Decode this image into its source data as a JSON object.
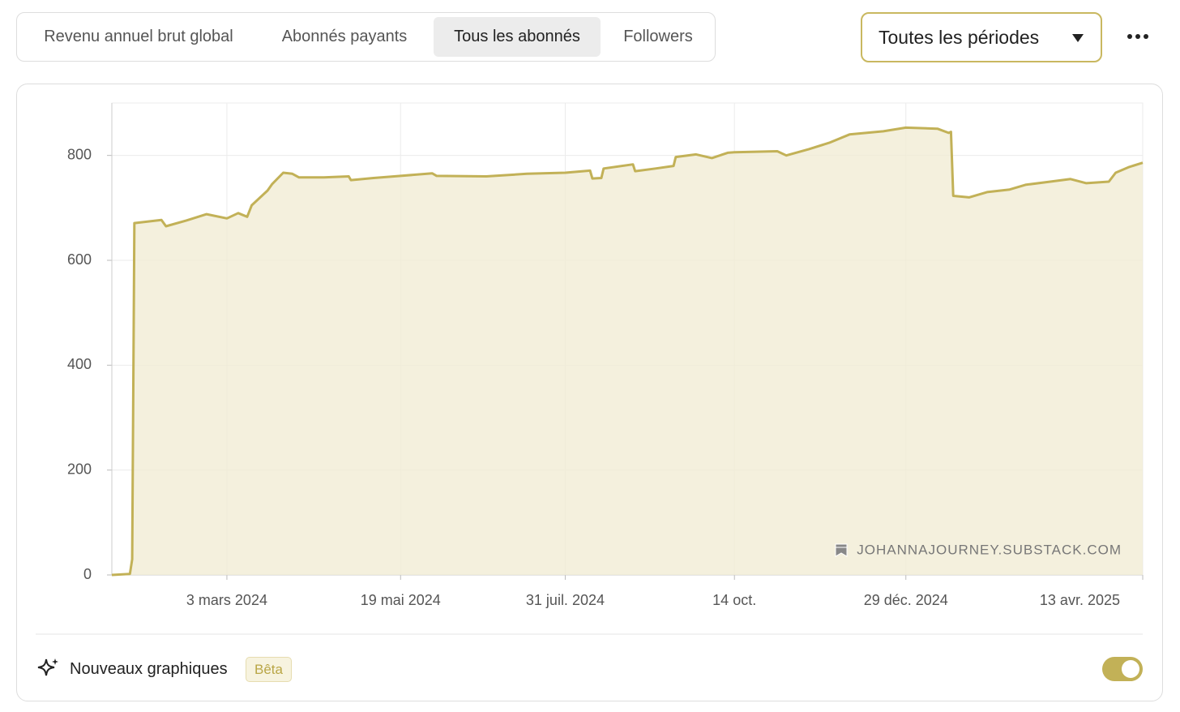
{
  "tabs": [
    "Revenu annuel brut global",
    "Abonnés payants",
    "Tous les abonnés",
    "Followers"
  ],
  "period_selector": "Toutes les périodes",
  "chart_data": {
    "type": "area",
    "watermark": "JOHANNAJOURNEY.SUBSTACK.COM",
    "color": "#c2b157",
    "fill": "#f1ecd5",
    "grid": true,
    "x": [
      "2024-01-12",
      "2024-01-20",
      "2024-01-21",
      "2024-01-22",
      "2024-02-03",
      "2024-02-05",
      "2024-02-14",
      "2024-02-23",
      "2024-03-03",
      "2024-03-08",
      "2024-03-12",
      "2024-03-14",
      "2024-03-21",
      "2024-03-23",
      "2024-03-28",
      "2024-04-01",
      "2024-04-04",
      "2024-04-15",
      "2024-04-26",
      "2024-04-27",
      "2024-05-07",
      "2024-05-19",
      "2024-06-02",
      "2024-06-04",
      "2024-06-26",
      "2024-07-14",
      "2024-07-31",
      "2024-08-11",
      "2024-08-12",
      "2024-08-16",
      "2024-08-17",
      "2024-08-30",
      "2024-08-31",
      "2024-09-09",
      "2024-09-17",
      "2024-09-18",
      "2024-09-27",
      "2024-10-04",
      "2024-10-11",
      "2024-10-14",
      "2024-11-02",
      "2024-11-06",
      "2024-11-16",
      "2024-11-25",
      "2024-12-04",
      "2024-12-19",
      "2024-12-29",
      "2025-01-12",
      "2025-01-17",
      "2025-01-18",
      "2025-01-19",
      "2025-01-26",
      "2025-02-03",
      "2025-02-13",
      "2025-02-20",
      "2025-03-03",
      "2025-03-12",
      "2025-03-19",
      "2025-03-29",
      "2025-04-01",
      "2025-04-07",
      "2025-04-13"
    ],
    "values": [
      0,
      2,
      30,
      671,
      677,
      665,
      676,
      688,
      680,
      690,
      683,
      705,
      733,
      745,
      767,
      765,
      758,
      758,
      760,
      753,
      757,
      761,
      766,
      761,
      760,
      765,
      767,
      771,
      756,
      757,
      775,
      783,
      770,
      775,
      780,
      797,
      802,
      795,
      805,
      806,
      808,
      800,
      812,
      824,
      840,
      846,
      853,
      851,
      843,
      845,
      723,
      720,
      730,
      735,
      744,
      750,
      755,
      747,
      750,
      767,
      778,
      786
    ],
    "xlim": [
      "2024-01-12",
      "2025-04-13"
    ],
    "xticks": [
      {
        "value": "2024-03-03",
        "label": "3 mars 2024"
      },
      {
        "value": "2024-05-19",
        "label": "19 mai 2024"
      },
      {
        "value": "2024-07-31",
        "label": "31 juil. 2024"
      },
      {
        "value": "2024-10-14",
        "label": "14 oct."
      },
      {
        "value": "2024-12-29",
        "label": "29 déc. 2024"
      },
      {
        "value": "2025-04-13",
        "label": "13 avr. 2025"
      }
    ],
    "ylim": [
      0,
      900
    ],
    "yticks": [
      0,
      200,
      400,
      600,
      800
    ]
  },
  "footer": {
    "label": "Nouveaux graphiques",
    "badge": "Bêta"
  }
}
